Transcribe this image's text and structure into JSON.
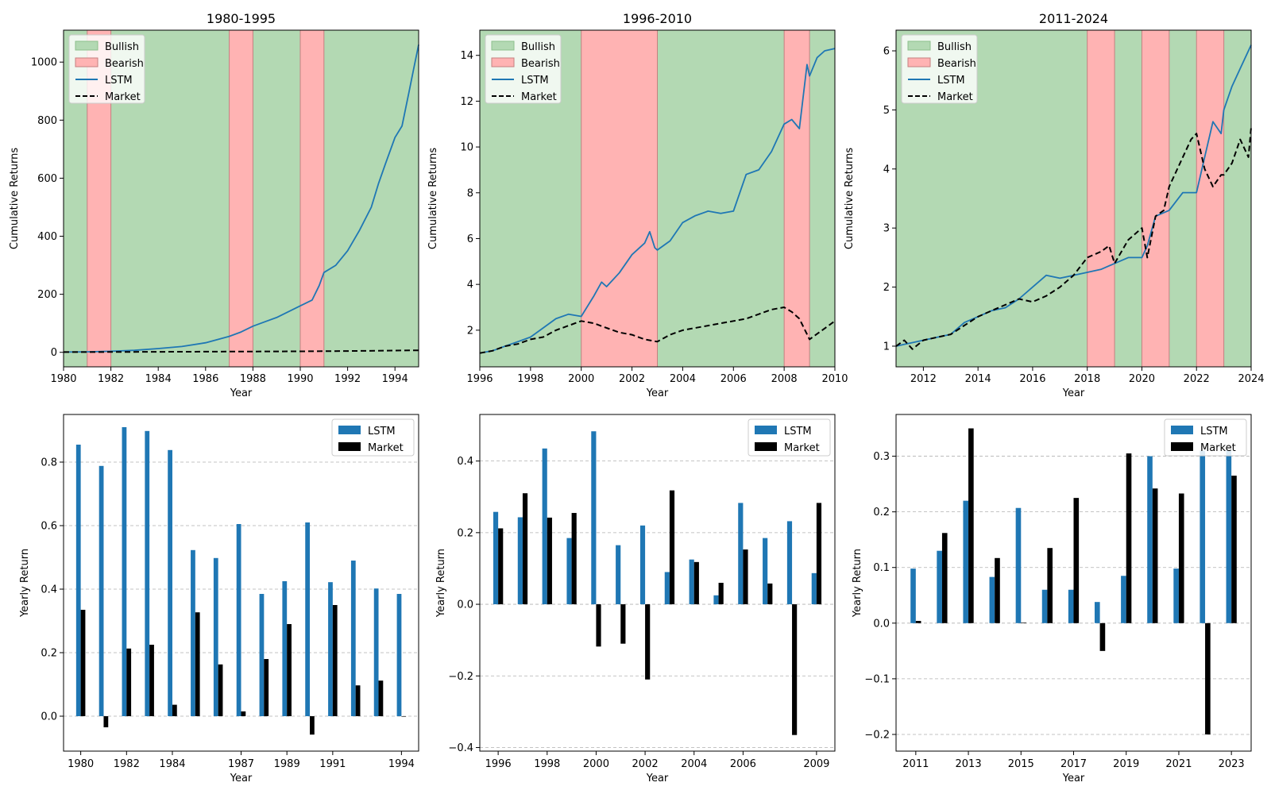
{
  "colors": {
    "bullish": "#b3d9b3",
    "bullish_edge": "#8cc08c",
    "bearish": "#ffb3b3",
    "bearish_edge": "#c48080",
    "lstm": "#1f77b4",
    "market": "#000000",
    "grid": "#b0b0b0"
  },
  "legend_labels": {
    "bullish": "Bullish",
    "bearish": "Bearish",
    "lstm": "LSTM",
    "market": "Market"
  },
  "chart_data": [
    {
      "type": "line",
      "title": "1980-1995",
      "xlabel": "Year",
      "ylabel": "Cumulative Returns",
      "xlim": [
        1980,
        1995
      ],
      "ylim": [
        -50,
        1110
      ],
      "xticks": [
        1980,
        1982,
        1984,
        1986,
        1988,
        1990,
        1992,
        1994
      ],
      "xtick_labels": [
        "1980",
        "1982",
        "1984",
        "1986",
        "1988",
        "1990",
        "1992",
        "1994"
      ],
      "yticks": [
        0,
        200,
        400,
        600,
        800,
        1000
      ],
      "ytick_labels": [
        "0",
        "200",
        "400",
        "600",
        "800",
        "1000"
      ],
      "bearish_periods": [
        [
          1981,
          1982
        ],
        [
          1987,
          1988
        ],
        [
          1990,
          1991
        ]
      ],
      "legend": "top-left",
      "series": [
        {
          "name": "LSTM",
          "style": "solid",
          "x": [
            1980,
            1981,
            1982,
            1983,
            1984,
            1985,
            1986,
            1987,
            1987.5,
            1988,
            1988.5,
            1989,
            1989.5,
            1990,
            1990.5,
            1990.8,
            1991,
            1991.5,
            1992,
            1992.5,
            1993,
            1993.3,
            1993.6,
            1994,
            1994.3,
            1994.6,
            1994.8,
            1995
          ],
          "y": [
            1,
            1.8,
            3.5,
            7,
            13,
            20,
            33,
            55,
            70,
            90,
            105,
            120,
            140,
            160,
            180,
            230,
            275,
            300,
            350,
            420,
            500,
            580,
            650,
            740,
            780,
            900,
            980,
            1060
          ]
        },
        {
          "name": "Market",
          "style": "dashed",
          "x": [
            1980,
            1982,
            1984,
            1986,
            1988,
            1990,
            1992,
            1994,
            1995
          ],
          "y": [
            1,
            1.2,
            1.7,
            2.3,
            2.8,
            3.4,
            4.5,
            6.2,
            7
          ]
        }
      ]
    },
    {
      "type": "line",
      "title": "1996-2010",
      "xlabel": "Year",
      "ylabel": "Cumulative Returns",
      "xlim": [
        1996,
        2010
      ],
      "ylim": [
        0.4,
        15.1
      ],
      "xticks": [
        1996,
        1998,
        2000,
        2002,
        2004,
        2006,
        2008,
        2010
      ],
      "xtick_labels": [
        "1996",
        "1998",
        "2000",
        "2002",
        "2004",
        "2006",
        "2008",
        "2010"
      ],
      "yticks": [
        2,
        4,
        6,
        8,
        10,
        12,
        14
      ],
      "ytick_labels": [
        "2",
        "4",
        "6",
        "8",
        "10",
        "12",
        "14"
      ],
      "bearish_periods": [
        [
          2000,
          2003
        ],
        [
          2008,
          2009
        ]
      ],
      "legend": "top-left",
      "series": [
        {
          "name": "LSTM",
          "style": "solid",
          "x": [
            1996,
            1996.5,
            1997,
            1997.5,
            1998,
            1998.5,
            1999,
            1999.5,
            2000,
            2000.5,
            2000.8,
            2001,
            2001.5,
            2002,
            2002.5,
            2002.7,
            2002.9,
            2003,
            2003.5,
            2004,
            2004.5,
            2005,
            2005.5,
            2006,
            2006.5,
            2007,
            2007.5,
            2008,
            2008.3,
            2008.6,
            2008.9,
            2009,
            2009.3,
            2009.6,
            2010
          ],
          "y": [
            1,
            1.1,
            1.3,
            1.5,
            1.7,
            2.1,
            2.5,
            2.7,
            2.6,
            3.5,
            4.1,
            3.9,
            4.5,
            5.3,
            5.8,
            6.3,
            5.6,
            5.5,
            5.9,
            6.7,
            7.0,
            7.2,
            7.1,
            7.2,
            8.8,
            9.0,
            9.8,
            11.0,
            11.2,
            10.8,
            13.6,
            13.1,
            13.9,
            14.2,
            14.3
          ]
        },
        {
          "name": "Market",
          "style": "dashed",
          "x": [
            1996,
            1996.5,
            1997,
            1997.5,
            1998,
            1998.5,
            1999,
            1999.5,
            2000,
            2000.5,
            2001,
            2001.5,
            2002,
            2002.5,
            2003,
            2003.5,
            2004,
            2004.5,
            2005,
            2005.5,
            2006,
            2006.5,
            2007,
            2007.5,
            2008,
            2008.3,
            2008.6,
            2009,
            2009.5,
            2010
          ],
          "y": [
            1,
            1.1,
            1.3,
            1.4,
            1.6,
            1.7,
            2.0,
            2.2,
            2.4,
            2.3,
            2.1,
            1.9,
            1.8,
            1.6,
            1.5,
            1.8,
            2.0,
            2.1,
            2.2,
            2.3,
            2.4,
            2.5,
            2.7,
            2.9,
            3.0,
            2.8,
            2.5,
            1.6,
            2.0,
            2.4
          ]
        }
      ]
    },
    {
      "type": "line",
      "title": "2011-2024",
      "xlabel": "Year",
      "ylabel": "Cumulative Returns",
      "xlim": [
        2011,
        2024
      ],
      "ylim": [
        0.65,
        6.35
      ],
      "xticks": [
        2012,
        2014,
        2016,
        2018,
        2020,
        2022,
        2024
      ],
      "xtick_labels": [
        "2012",
        "2014",
        "2016",
        "2018",
        "2020",
        "2022",
        "2024"
      ],
      "yticks": [
        1,
        2,
        3,
        4,
        5,
        6
      ],
      "ytick_labels": [
        "1",
        "2",
        "3",
        "4",
        "5",
        "6"
      ],
      "bearish_periods": [
        [
          2018,
          2019
        ],
        [
          2020,
          2021
        ],
        [
          2022,
          2023
        ]
      ],
      "legend": "top-left",
      "series": [
        {
          "name": "LSTM",
          "style": "solid",
          "x": [
            2011,
            2011.5,
            2012,
            2012.5,
            2013,
            2013.5,
            2014,
            2014.5,
            2015,
            2015.5,
            2016,
            2016.5,
            2017,
            2017.5,
            2018,
            2018.5,
            2019,
            2019.5,
            2020,
            2020.2,
            2020.5,
            2021,
            2021.5,
            2022,
            2022.3,
            2022.6,
            2022.9,
            2023,
            2023.3,
            2023.6,
            2024
          ],
          "y": [
            1,
            1.05,
            1.1,
            1.15,
            1.2,
            1.4,
            1.5,
            1.6,
            1.65,
            1.8,
            2.0,
            2.2,
            2.15,
            2.2,
            2.25,
            2.3,
            2.4,
            2.5,
            2.5,
            2.7,
            3.2,
            3.3,
            3.6,
            3.6,
            4.2,
            4.8,
            4.6,
            5.0,
            5.4,
            5.7,
            6.1
          ]
        },
        {
          "name": "Market",
          "style": "dashed",
          "x": [
            2011,
            2011.3,
            2011.6,
            2012,
            2012.5,
            2013,
            2013.5,
            2014,
            2014.5,
            2015,
            2015.5,
            2016,
            2016.5,
            2017,
            2017.5,
            2018,
            2018.5,
            2018.8,
            2019,
            2019.5,
            2020,
            2020.2,
            2020.5,
            2020.8,
            2021,
            2021.5,
            2021.8,
            2022,
            2022.3,
            2022.6,
            2022.9,
            2023,
            2023.3,
            2023.6,
            2023.9,
            2024
          ],
          "y": [
            1,
            1.1,
            0.95,
            1.1,
            1.15,
            1.2,
            1.35,
            1.5,
            1.6,
            1.7,
            1.8,
            1.75,
            1.85,
            2.0,
            2.2,
            2.5,
            2.6,
            2.7,
            2.4,
            2.8,
            3.0,
            2.5,
            3.2,
            3.3,
            3.7,
            4.2,
            4.5,
            4.6,
            4.0,
            3.7,
            3.9,
            3.9,
            4.1,
            4.5,
            4.2,
            4.7
          ]
        }
      ]
    },
    {
      "type": "bar",
      "xlabel": "Year",
      "ylabel": "Yearly Return",
      "ylim": [
        -0.11,
        0.95
      ],
      "yticks": [
        0.0,
        0.2,
        0.4,
        0.6,
        0.8
      ],
      "ytick_labels": [
        "0.0",
        "0.2",
        "0.4",
        "0.6",
        "0.8"
      ],
      "categories": [
        1980,
        1981,
        1982,
        1983,
        1984,
        1985,
        1986,
        1987,
        1988,
        1989,
        1990,
        1991,
        1992,
        1993,
        1994
      ],
      "shown_xticks": [
        1980,
        1982,
        1984,
        1987,
        1989,
        1991,
        1994
      ],
      "xtick_labels": [
        "1980",
        "1982",
        "1984",
        "1987",
        "1989",
        "1991",
        "1994"
      ],
      "grid": "y-dashed",
      "legend": "top-right",
      "series": [
        {
          "name": "LSTM",
          "values": [
            0.855,
            0.788,
            0.91,
            0.898,
            0.838,
            0.523,
            0.498,
            0.605,
            0.385,
            0.425,
            0.61,
            0.422,
            0.49,
            0.402,
            0.385
          ]
        },
        {
          "name": "Market",
          "values": [
            0.335,
            -0.035,
            0.213,
            0.225,
            0.036,
            0.327,
            0.163,
            0.015,
            0.18,
            0.29,
            -0.058,
            0.35,
            0.097,
            0.112,
            0.0
          ]
        }
      ]
    },
    {
      "type": "bar",
      "xlabel": "Year",
      "ylabel": "Yearly Return",
      "ylim": [
        -0.41,
        0.53
      ],
      "yticks": [
        -0.4,
        -0.2,
        0.0,
        0.2,
        0.4
      ],
      "ytick_labels": [
        "−0.4",
        "−0.2",
        "0.0",
        "0.2",
        "0.4"
      ],
      "categories": [
        1996,
        1997,
        1998,
        1999,
        2000,
        2001,
        2002,
        2003,
        2004,
        2005,
        2006,
        2007,
        2008,
        2009
      ],
      "shown_xticks": [
        1996,
        1998,
        2000,
        2002,
        2004,
        2006,
        2009
      ],
      "xtick_labels": [
        "1996",
        "1998",
        "2000",
        "2002",
        "2004",
        "2006",
        "2009"
      ],
      "grid": "y-dashed",
      "legend": "top-right",
      "series": [
        {
          "name": "LSTM",
          "values": [
            0.258,
            0.243,
            0.435,
            0.185,
            0.483,
            0.165,
            0.22,
            0.09,
            0.125,
            0.025,
            0.283,
            0.185,
            0.232,
            0.087
          ]
        },
        {
          "name": "Market",
          "values": [
            0.212,
            0.31,
            0.242,
            0.255,
            -0.118,
            -0.11,
            -0.21,
            0.318,
            0.118,
            0.06,
            0.153,
            0.058,
            -0.365,
            0.283
          ]
        }
      ]
    },
    {
      "type": "bar",
      "xlabel": "Year",
      "ylabel": "Yearly Return",
      "ylim": [
        -0.23,
        0.375
      ],
      "yticks": [
        -0.2,
        -0.1,
        0.0,
        0.1,
        0.2,
        0.3
      ],
      "ytick_labels": [
        "−0.2",
        "−0.1",
        "0.0",
        "0.1",
        "0.2",
        "0.3"
      ],
      "categories": [
        2011,
        2012,
        2013,
        2014,
        2015,
        2016,
        2017,
        2018,
        2019,
        2020,
        2021,
        2022,
        2023
      ],
      "shown_xticks": [
        2011,
        2013,
        2015,
        2017,
        2019,
        2021,
        2023
      ],
      "xtick_labels": [
        "2011",
        "2013",
        "2015",
        "2017",
        "2019",
        "2021",
        "2023"
      ],
      "grid": "y-dashed",
      "legend": "top-right",
      "series": [
        {
          "name": "LSTM",
          "values": [
            0.098,
            0.13,
            0.22,
            0.083,
            0.207,
            0.06,
            0.06,
            0.038,
            0.085,
            0.3,
            0.098,
            0.31,
            0.31
          ]
        },
        {
          "name": "Market",
          "values": [
            0.004,
            0.162,
            0.35,
            0.117,
            0.001,
            0.135,
            0.225,
            -0.05,
            0.305,
            0.242,
            0.233,
            -0.2,
            0.265
          ]
        }
      ]
    }
  ]
}
